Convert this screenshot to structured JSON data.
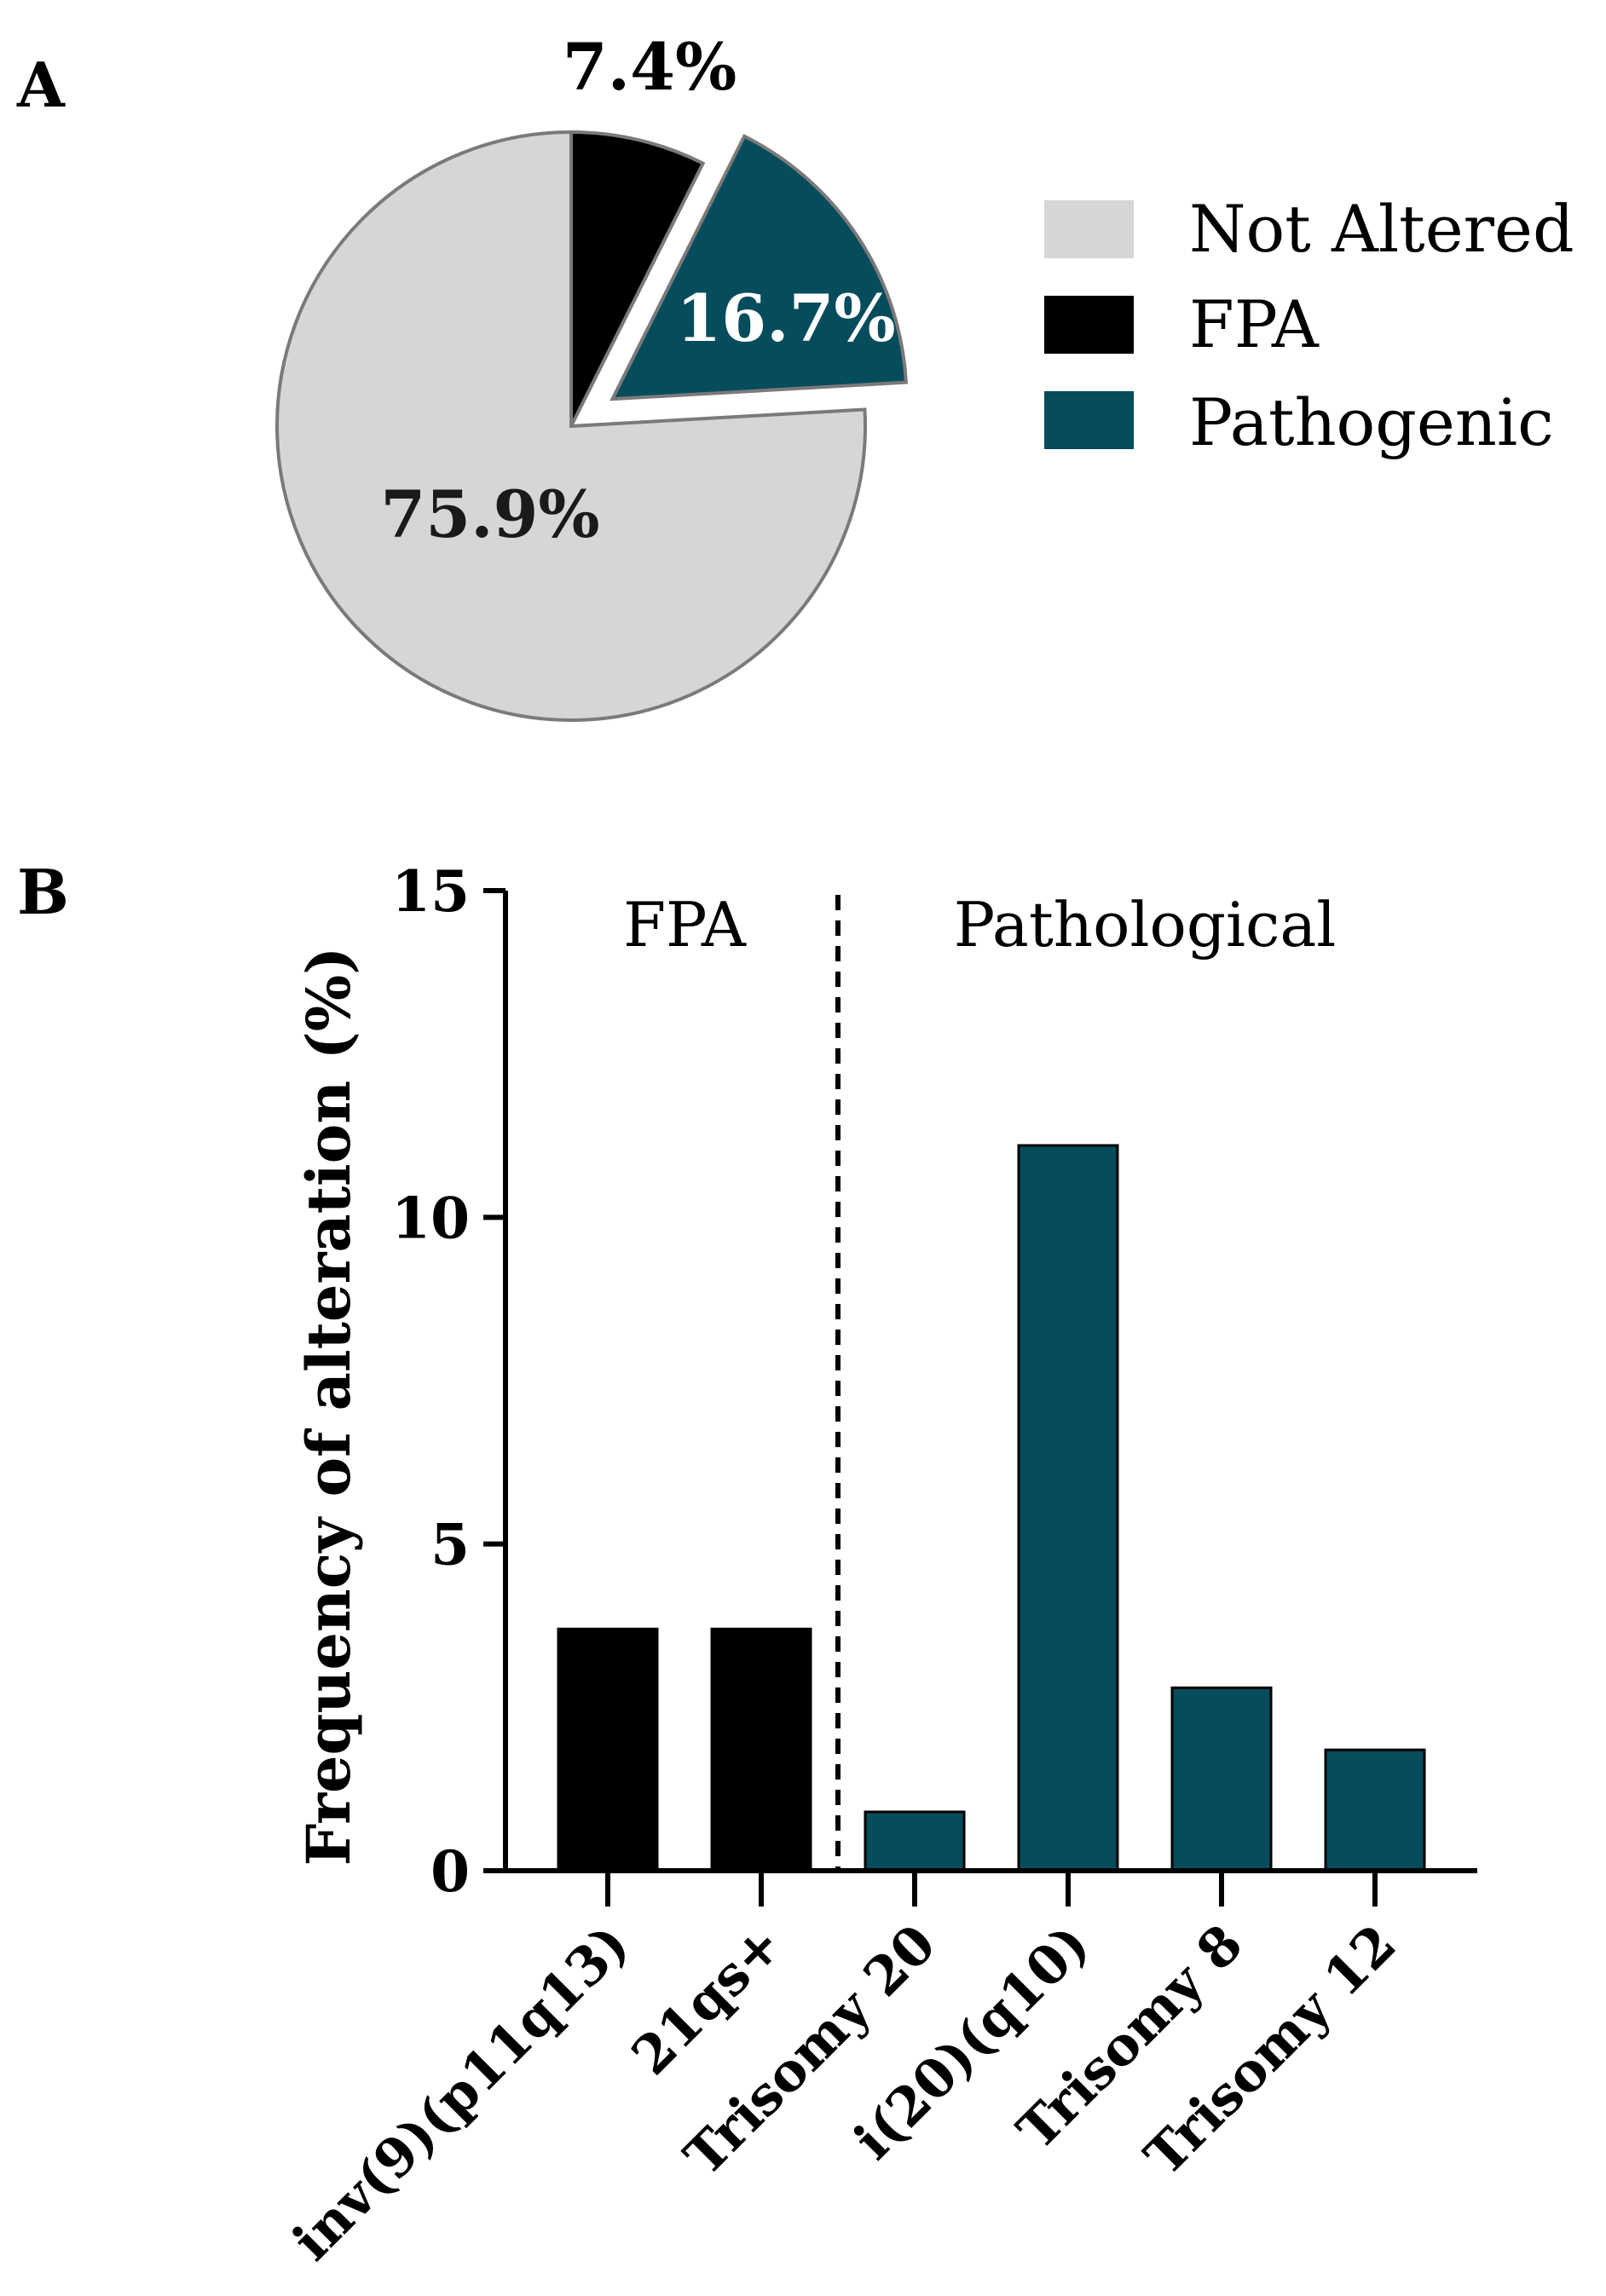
{
  "colors": {
    "not_altered": "#d6d6d6",
    "fpa": "#000000",
    "pathogenic": "#054c5c",
    "slice_edge": "#7a7a7a",
    "axis": "#000000"
  },
  "chart_data": [
    {
      "panel": "A",
      "type": "pie",
      "slices": [
        {
          "label": "FPA",
          "value": 7.4,
          "value_label": "7.4%",
          "exploded": false
        },
        {
          "label": "Pathogenic",
          "value": 16.7,
          "value_label": "16.7%",
          "exploded": true
        },
        {
          "label": "Not Altered",
          "value": 75.9,
          "value_label": "75.9%",
          "exploded": false
        }
      ],
      "legend": [
        "Not Altered",
        "FPA",
        "Pathogenic"
      ],
      "legend_position": "right"
    },
    {
      "panel": "B",
      "type": "bar",
      "categories": [
        "inv(9)(p11q13)",
        "21qs+",
        "Trisomy 20",
        "i(20)(q10)",
        "Trisomy 8",
        "Trisomy 12"
      ],
      "values": [
        3.7,
        3.7,
        0.9,
        11.1,
        2.8,
        1.85
      ],
      "groups": [
        "FPA",
        "FPA",
        "Pathological",
        "Pathological",
        "Pathological",
        "Pathological"
      ],
      "group_labels": [
        "FPA",
        "Pathological"
      ],
      "ylabel": "Frequency of alteration (%)",
      "xlabel": "",
      "ylim": [
        0,
        15
      ],
      "yticks": [
        0,
        5,
        10,
        15
      ],
      "divider_between": [
        "21qs+",
        "Trisomy 20"
      ]
    }
  ]
}
